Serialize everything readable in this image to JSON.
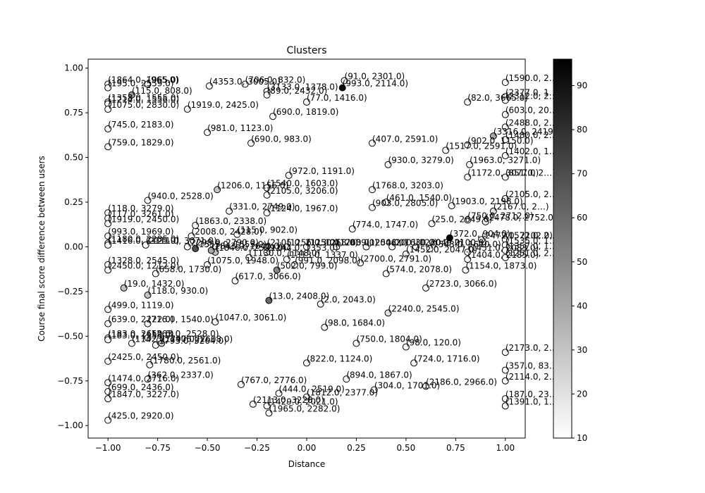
{
  "chart_data": {
    "type": "scatter",
    "title": "Clusters",
    "xlabel": "Distance",
    "ylabel": "Course final score difference between users",
    "xlim": [
      -1.1,
      1.1
    ],
    "ylim": [
      -1.07,
      1.05
    ],
    "x_ticks": [
      -1.0,
      -0.75,
      -0.5,
      -0.25,
      0.0,
      0.25,
      0.5,
      0.75,
      1.0
    ],
    "x_tick_labels": [
      "−1.00",
      "−0.75",
      "−0.50",
      "−0.25",
      "0.00",
      "0.25",
      "0.50",
      "0.75",
      "1.00"
    ],
    "y_ticks": [
      1.0,
      0.75,
      0.5,
      0.25,
      0.0,
      -0.25,
      -0.5,
      -0.75,
      -1.0
    ],
    "y_tick_labels": [
      "1.00",
      "0.75",
      "0.50",
      "0.25",
      "0.00",
      "−0.25",
      "−0.50",
      "−0.75",
      "−1.00"
    ],
    "grid": false,
    "marker": "circle",
    "colormap": "gray_r",
    "colorbar": {
      "min": 10,
      "max": 96,
      "ticks": [
        90,
        80,
        70,
        60,
        50,
        40,
        30,
        20,
        10
      ],
      "tick_labels": [
        "90",
        "80",
        "70",
        "60",
        "50",
        "40",
        "30",
        "20",
        "10"
      ]
    },
    "points": [
      {
        "x": -1.0,
        "y": 0.91,
        "label": "(1864.0, 1965.0)",
        "c": 12
      },
      {
        "x": -1.0,
        "y": 0.89,
        "label": "(195.0, 2559.0)",
        "c": 12
      },
      {
        "x": -0.49,
        "y": 0.9,
        "label": "(4353.0, 3005.0)",
        "c": 12
      },
      {
        "x": -0.8,
        "y": 0.91,
        "label": "(965.0)",
        "c": 12
      },
      {
        "x": -0.31,
        "y": 0.91,
        "label": "(706.0, 832.0)",
        "c": 12
      },
      {
        "x": -0.2,
        "y": 0.87,
        "label": "(3133.0, 1378.0)",
        "c": 12
      },
      {
        "x": -0.2,
        "y": 0.85,
        "label": "(89.0, 2432.0)",
        "c": 12
      },
      {
        "x": 0.19,
        "y": 0.93,
        "label": "(91.0, 2301.0)",
        "c": 12
      },
      {
        "x": 0.18,
        "y": 0.89,
        "label": "(993.0, 2114.0)",
        "c": 92
      },
      {
        "x": -0.88,
        "y": 0.85,
        "label": "(115.0, 808.0)",
        "c": 45
      },
      {
        "x": -1.0,
        "y": 0.81,
        "label": "(1358.0, 1555.0)",
        "c": 12
      },
      {
        "x": -1.0,
        "y": 0.8,
        "label": "(1214.0, 1556.0)",
        "c": 12
      },
      {
        "x": -1.0,
        "y": 0.77,
        "label": "(1075.0, 2830.0)",
        "c": 12
      },
      {
        "x": -0.6,
        "y": 0.77,
        "label": "(1919.0, 2425.0)",
        "c": 12
      },
      {
        "x": 0.0,
        "y": 0.81,
        "label": "(77.0, 1416.0)",
        "c": 12
      },
      {
        "x": -0.17,
        "y": 0.73,
        "label": "(690.0, 1819.0)",
        "c": 12
      },
      {
        "x": 0.81,
        "y": 0.81,
        "label": "(82.0, 3665.0)",
        "c": 12
      },
      {
        "x": 1.0,
        "y": 0.92,
        "label": "(1590.0, 2…)",
        "c": 12
      },
      {
        "x": 1.0,
        "y": 0.84,
        "label": "(2377.0, 1…)",
        "c": 12
      },
      {
        "x": 1.0,
        "y": 0.82,
        "label": "(2312.0, 2…)",
        "c": 12
      },
      {
        "x": 1.0,
        "y": 0.74,
        "label": "(603.0, 20…)",
        "c": 12
      },
      {
        "x": -1.0,
        "y": 0.66,
        "label": "(745.0, 2183.0)",
        "c": 12
      },
      {
        "x": -0.5,
        "y": 0.64,
        "label": "(981.0, 1123.0)",
        "c": 12
      },
      {
        "x": -1.0,
        "y": 0.56,
        "label": "(759.0, 1829.0)",
        "c": 12
      },
      {
        "x": -0.28,
        "y": 0.58,
        "label": "(690.0, 983.0)",
        "c": 12
      },
      {
        "x": 0.33,
        "y": 0.58,
        "label": "(407.0, 2591.0)",
        "c": 12
      },
      {
        "x": 0.7,
        "y": 0.54,
        "label": "(1517.0, 2591.0)",
        "c": 12
      },
      {
        "x": 0.81,
        "y": 0.57,
        "label": "(902.0, 1150.0)",
        "c": 12
      },
      {
        "x": 0.94,
        "y": 0.62,
        "label": "(3316.0, 2419.0)",
        "c": 40
      },
      {
        "x": 1.0,
        "y": 0.67,
        "label": "(2488.0, 2…)",
        "c": 12
      },
      {
        "x": 1.0,
        "y": 0.6,
        "label": "(1480.0, 2…)",
        "c": 12
      },
      {
        "x": 1.0,
        "y": 0.51,
        "label": "(1402.0, 1…)",
        "c": 12
      },
      {
        "x": 0.41,
        "y": 0.46,
        "label": "(930.0, 3279.0)",
        "c": 12
      },
      {
        "x": 0.82,
        "y": 0.46,
        "label": "(1963.0, 3271.0)",
        "c": 12
      },
      {
        "x": 0.81,
        "y": 0.39,
        "label": "(1172.0, 3077.0)",
        "c": 12
      },
      {
        "x": 1.0,
        "y": 0.39,
        "label": "(851.0, 2…)",
        "c": 12
      },
      {
        "x": -0.09,
        "y": 0.4,
        "label": "(972.0, 1191.0)",
        "c": 12
      },
      {
        "x": -0.45,
        "y": 0.32,
        "label": "(1206.0, 1156.0)",
        "c": 30
      },
      {
        "x": -0.2,
        "y": 0.33,
        "label": "(1540.0, 1603.0)",
        "c": 12
      },
      {
        "x": -0.2,
        "y": 0.29,
        "label": "(2105.0, 3206.0)",
        "c": 12
      },
      {
        "x": 0.33,
        "y": 0.32,
        "label": "(1768.0, 3203.0)",
        "c": 12
      },
      {
        "x": -0.8,
        "y": 0.26,
        "label": "(940.0, 2528.0)",
        "c": 12
      },
      {
        "x": -0.39,
        "y": 0.2,
        "label": "(331.0, 2749.0)",
        "c": 12
      },
      {
        "x": -0.2,
        "y": 0.19,
        "label": "(1124.0, 1967.0)",
        "c": 12
      },
      {
        "x": 0.33,
        "y": 0.22,
        "label": "(903.0, 2805.0)",
        "c": 12
      },
      {
        "x": 0.4,
        "y": 0.25,
        "label": "(461.0, 1540.0)",
        "c": 12
      },
      {
        "x": 0.73,
        "y": 0.23,
        "label": "(1903.0, 2198.0)",
        "c": 12
      },
      {
        "x": 1.0,
        "y": 0.27,
        "label": "(2105.0, 2…)",
        "c": 12
      },
      {
        "x": 0.94,
        "y": 0.2,
        "label": "(2167.0, 2…)",
        "c": 20
      },
      {
        "x": -1.0,
        "y": 0.19,
        "label": "(118.0, 3279.0)",
        "c": 12
      },
      {
        "x": -1.0,
        "y": 0.16,
        "label": "(117.0, 3261.0)",
        "c": 12
      },
      {
        "x": -1.0,
        "y": 0.13,
        "label": "(1919.0, 2450.0)",
        "c": 12
      },
      {
        "x": -0.56,
        "y": 0.12,
        "label": "(1863.0, 2338.0)",
        "c": 12
      },
      {
        "x": 0.63,
        "y": 0.13,
        "label": "(25.0, 2649.0)",
        "c": 12
      },
      {
        "x": 0.81,
        "y": 0.15,
        "label": "(750.0, 2712.0)",
        "c": 12
      },
      {
        "x": 0.9,
        "y": 0.14,
        "label": "(2478.0, 2752.0)",
        "c": 12
      },
      {
        "x": 0.23,
        "y": 0.1,
        "label": "(774.0, 1747.0)",
        "c": 12
      },
      {
        "x": -1.0,
        "y": 0.06,
        "label": "(993.0, 1969.0)",
        "c": 12
      },
      {
        "x": -0.58,
        "y": 0.06,
        "label": "(2008.0, 2428.0)",
        "c": 12
      },
      {
        "x": -0.35,
        "y": 0.07,
        "label": "(115.0, 902.0)",
        "c": 12
      },
      {
        "x": -1.0,
        "y": 0.02,
        "label": "(1180.0, 2285.0)",
        "c": 12
      },
      {
        "x": -1.0,
        "y": 0.01,
        "label": "(1416.0, 1125.0)",
        "c": 12
      },
      {
        "x": -0.81,
        "y": 0.01,
        "label": "(2111.0, 3071.0)",
        "c": 12
      },
      {
        "x": -0.6,
        "y": 0.0,
        "label": "(2298.0, 2790.0)",
        "c": 12
      },
      {
        "x": -0.56,
        "y": -0.01,
        "label": "(1553.0, 1553.0)",
        "c": 70
      },
      {
        "x": -0.48,
        "y": -0.02,
        "label": "(1843.0, 1640.0)",
        "c": 40
      },
      {
        "x": -0.46,
        "y": -0.03,
        "label": "(1846.0, 2599.0)",
        "c": 30
      },
      {
        "x": -0.2,
        "y": 0.0,
        "label": "(2105.0, 2113.0)",
        "c": 12
      },
      {
        "x": -0.1,
        "y": 0.0,
        "label": "(1256.0, 1258.0)",
        "c": 12
      },
      {
        "x": 0.0,
        "y": 0.0,
        "label": "(1250.0, 2039.0)",
        "c": 12
      },
      {
        "x": 0.15,
        "y": 0.0,
        "label": "(1760.0, 2046.0)",
        "c": 12
      },
      {
        "x": 0.3,
        "y": 0.0,
        "label": "(1250.0, 1630.0)",
        "c": 12
      },
      {
        "x": 0.43,
        "y": 0.0,
        "label": "(2001.0, 2049.0)",
        "c": 12
      },
      {
        "x": 0.55,
        "y": 0.0,
        "label": "(1230.0, 2100.0)",
        "c": 12
      },
      {
        "x": 0.62,
        "y": -0.01,
        "label": "(1543.0, 1610.0)",
        "c": 12
      },
      {
        "x": 0.72,
        "y": 0.05,
        "label": "(372.0, 904.0)",
        "c": 95
      },
      {
        "x": 0.88,
        "y": 0.04,
        "label": "(2472.0, 2102.0)",
        "c": 12
      },
      {
        "x": 1.0,
        "y": 0.04,
        "label": "(1572.0, 2…)",
        "c": 12
      },
      {
        "x": 1.0,
        "y": 0.01,
        "label": "(1535.0, 1…)",
        "c": 12
      },
      {
        "x": 1.0,
        "y": -0.02,
        "label": "(1357.0, 1…)",
        "c": 12
      },
      {
        "x": 1.0,
        "y": -0.06,
        "label": "(1251.0, 2…)",
        "c": 12
      },
      {
        "x": 0.81,
        "y": -0.03,
        "label": "(1451.0, 2083.0)",
        "c": 12
      },
      {
        "x": 0.81,
        "y": -0.07,
        "label": "(1404.0, 2185.0)",
        "c": 12
      },
      {
        "x": 0.5,
        "y": -0.04,
        "label": "(1452.0, 2047.0)",
        "c": 12
      },
      {
        "x": 0.27,
        "y": -0.09,
        "label": "(2700.0, 2791.0)",
        "c": 12
      },
      {
        "x": -0.29,
        "y": -0.06,
        "label": "(1130.0, 1148.0)",
        "c": 12
      },
      {
        "x": -0.1,
        "y": -0.07,
        "label": "(1313.0, 1337.0)",
        "c": 12
      },
      {
        "x": -0.2,
        "y": -0.03,
        "label": "(1244.0, 1353.0)",
        "c": 12
      },
      {
        "x": -0.5,
        "y": -0.1,
        "label": "(1075.0, 1948.0)",
        "c": 12
      },
      {
        "x": -0.06,
        "y": -0.1,
        "label": "(991.0, 2098.0)",
        "c": 12
      },
      {
        "x": -0.15,
        "y": -0.13,
        "label": "(502.0, 799.0)",
        "c": 50
      },
      {
        "x": -1.0,
        "y": -0.1,
        "label": "(1328.0, 2545.0)",
        "c": 12
      },
      {
        "x": -1.0,
        "y": -0.13,
        "label": "(2450.0, 1212.0)",
        "c": 12
      },
      {
        "x": -0.76,
        "y": -0.15,
        "label": "(658.0, 1730.0)",
        "c": 12
      },
      {
        "x": 0.4,
        "y": -0.15,
        "label": "(574.0, 2078.0)",
        "c": 12
      },
      {
        "x": 0.8,
        "y": -0.13,
        "label": "(1154.0, 1873.0)",
        "c": 12
      },
      {
        "x": -0.36,
        "y": -0.19,
        "label": "(617.0, 3066.0)",
        "c": 12
      },
      {
        "x": -0.92,
        "y": -0.23,
        "label": "(19.0, 1432.0)",
        "c": 30
      },
      {
        "x": 0.6,
        "y": -0.23,
        "label": "(2723.0, 3066.0)",
        "c": 12
      },
      {
        "x": -0.8,
        "y": -0.27,
        "label": "(118.0, 930.0)",
        "c": 30
      },
      {
        "x": -0.19,
        "y": -0.3,
        "label": "(13.0, 2408.0)",
        "c": 60
      },
      {
        "x": 0.07,
        "y": -0.32,
        "label": "(2.0, 2043.0)",
        "c": 12
      },
      {
        "x": -1.0,
        "y": -0.35,
        "label": "(499.0, 1119.0)",
        "c": 12
      },
      {
        "x": 0.41,
        "y": -0.37,
        "label": "(2240.0, 2545.0)",
        "c": 20
      },
      {
        "x": -1.0,
        "y": -0.43,
        "label": "(639.0, 2222.0)",
        "c": 12
      },
      {
        "x": -0.8,
        "y": -0.43,
        "label": "(716.0, 1540.0)",
        "c": 12
      },
      {
        "x": -0.46,
        "y": -0.42,
        "label": "(1047.0, 3061.0)",
        "c": 12
      },
      {
        "x": 0.09,
        "y": -0.45,
        "label": "(98.0, 1684.0)",
        "c": 12
      },
      {
        "x": -1.0,
        "y": -0.51,
        "label": "(183.0, 2650.0)",
        "c": 12
      },
      {
        "x": -1.0,
        "y": -0.52,
        "label": "(183.0, 1253.0)",
        "c": 12
      },
      {
        "x": -0.8,
        "y": -0.51,
        "label": "(1263.0, 2528.0)",
        "c": 12
      },
      {
        "x": -0.88,
        "y": -0.54,
        "label": "(1142.0, 2406.0)",
        "c": 12
      },
      {
        "x": -0.76,
        "y": -0.55,
        "label": "(1793.0, 3264.0)",
        "c": 12
      },
      {
        "x": -0.73,
        "y": -0.54,
        "label": "(1797.0, 2608.0)",
        "c": 30
      },
      {
        "x": 0.25,
        "y": -0.54,
        "label": "(750.0, 1804.0)",
        "c": 12
      },
      {
        "x": 0.5,
        "y": -0.56,
        "label": "(98.0, 120.0)",
        "c": 12
      },
      {
        "x": 1.0,
        "y": -0.59,
        "label": "(2173.0, 2…)",
        "c": 12
      },
      {
        "x": -1.0,
        "y": -0.64,
        "label": "(2425.0, 2450.0)",
        "c": 12
      },
      {
        "x": -0.79,
        "y": -0.66,
        "label": "(1780.0, 2561.0)",
        "c": 12
      },
      {
        "x": 0.0,
        "y": -0.65,
        "label": "(822.0, 1124.0)",
        "c": 12
      },
      {
        "x": 0.54,
        "y": -0.65,
        "label": "(724.0, 1716.0)",
        "c": 12
      },
      {
        "x": 1.0,
        "y": -0.69,
        "label": "(357.0, 83…)",
        "c": 12
      },
      {
        "x": -1.0,
        "y": -0.76,
        "label": "(1474.0, 2716.0)",
        "c": 12
      },
      {
        "x": -0.8,
        "y": -0.74,
        "label": "(362.0, 2337.0)",
        "c": 12
      },
      {
        "x": -0.33,
        "y": -0.77,
        "label": "(767.0, 2776.0)",
        "c": 12
      },
      {
        "x": 0.2,
        "y": -0.74,
        "label": "(894.0, 1867.0)",
        "c": 12
      },
      {
        "x": 0.6,
        "y": -0.78,
        "label": "(2186.0, 2966.0)",
        "c": 12
      },
      {
        "x": 1.0,
        "y": -0.75,
        "label": "(2114.0, 2…)",
        "c": 12
      },
      {
        "x": -1.0,
        "y": -0.81,
        "label": "(699.0, 2436.0)",
        "c": 12
      },
      {
        "x": -0.14,
        "y": -0.82,
        "label": "(444.0, 2519.0)",
        "c": 12
      },
      {
        "x": 0.34,
        "y": -0.8,
        "label": "(304.0, 1701.0)",
        "c": 12
      },
      {
        "x": -1.0,
        "y": -0.85,
        "label": "(1847.0, 3227.0)",
        "c": 12
      },
      {
        "x": -0.27,
        "y": -0.88,
        "label": "(2113.0, 3228.0)",
        "c": 12
      },
      {
        "x": -0.2,
        "y": -0.89,
        "label": "(1429.0, 2021.0)",
        "c": 12
      },
      {
        "x": 0.0,
        "y": -0.84,
        "label": "(1812.0, 2377.0)",
        "c": 12
      },
      {
        "x": -0.19,
        "y": -0.93,
        "label": "(1965.0, 2282.0)",
        "c": 12
      },
      {
        "x": 1.0,
        "y": -0.85,
        "label": "(187.0, 23…)",
        "c": 12
      },
      {
        "x": 1.0,
        "y": -0.89,
        "label": "(1391.0, 1…)",
        "c": 12
      },
      {
        "x": -1.0,
        "y": -0.97,
        "label": "(425.0, 2920.0)",
        "c": 12
      }
    ]
  }
}
